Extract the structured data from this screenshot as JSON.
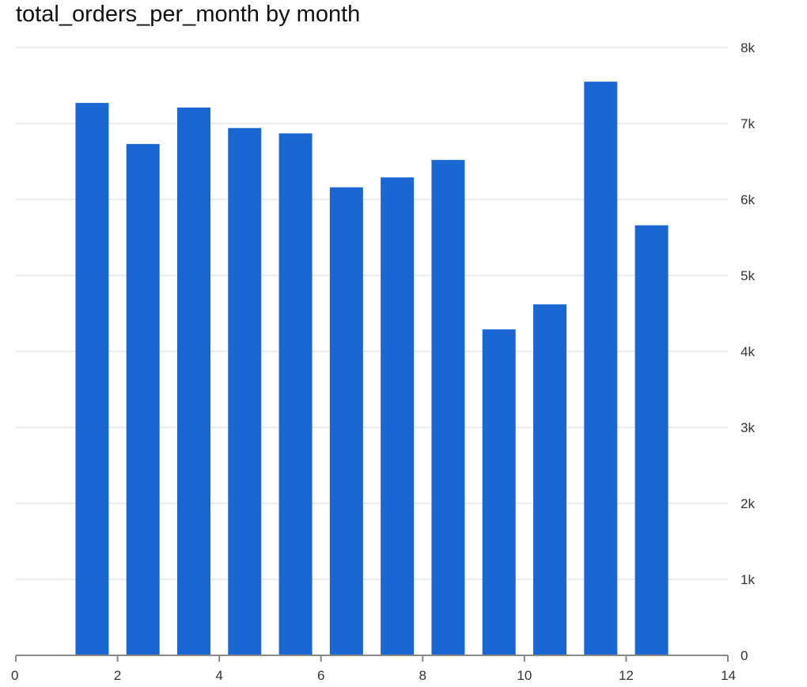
{
  "chart_data": {
    "type": "bar",
    "title": "total_orders_per_month by month",
    "xlabel": "",
    "ylabel": "",
    "x": [
      1.5,
      2.5,
      3.5,
      4.5,
      5.5,
      6.5,
      7.5,
      8.5,
      9.5,
      10.5,
      11.5,
      12.5
    ],
    "values": [
      7270,
      6730,
      7210,
      6940,
      6870,
      6160,
      6290,
      6520,
      4290,
      4620,
      7550,
      5660
    ],
    "xlim": [
      0,
      14
    ],
    "ylim": [
      0,
      8000
    ],
    "x_ticks": [
      0,
      2,
      4,
      6,
      8,
      10,
      12,
      14
    ],
    "x_tick_labels": [
      "0",
      "2",
      "4",
      "6",
      "8",
      "10",
      "12",
      "14"
    ],
    "y_ticks": [
      0,
      1000,
      2000,
      3000,
      4000,
      5000,
      6000,
      7000,
      8000
    ],
    "y_tick_labels": [
      "0",
      "1k",
      "2k",
      "3k",
      "4k",
      "5k",
      "6k",
      "7k",
      "8k"
    ],
    "y_axis_side": "right",
    "grid": true,
    "legend": "none",
    "bar_color": "#1a67d4",
    "grid_color": "#e6e6e6",
    "axis_color": "#888888"
  }
}
